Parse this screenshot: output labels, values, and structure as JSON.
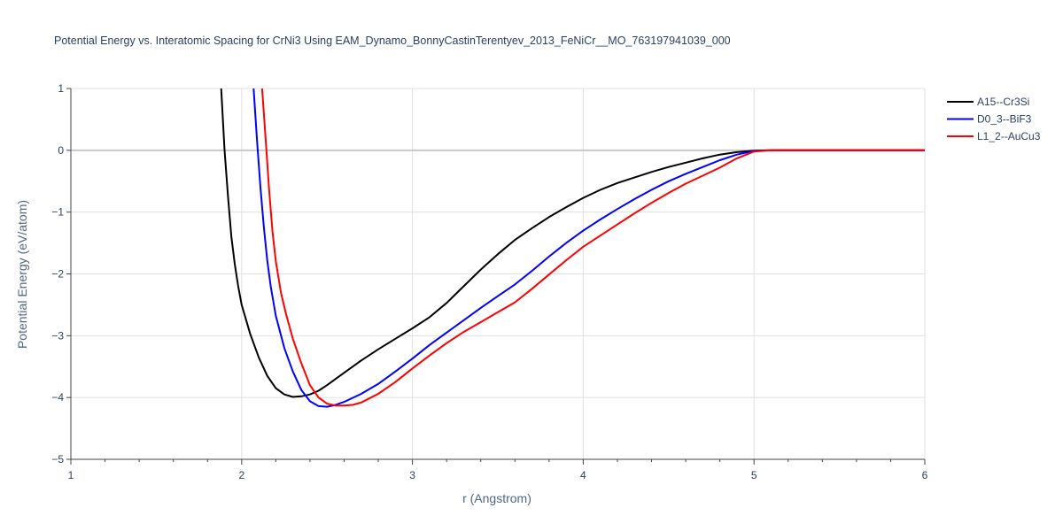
{
  "chart_data": {
    "type": "line",
    "title": "Potential Energy vs. Interatomic Spacing for CrNi3 Using EAM_Dynamo_BonnyCastinTerentyev_2013_FeNiCr__MO_763197941039_000",
    "xlabel": "r (Angstrom)",
    "ylabel": "Potential Energy (eV/atom)",
    "xlim": [
      1,
      6
    ],
    "ylim": [
      -5,
      1
    ],
    "xticks": [
      "1",
      "2",
      "3",
      "4",
      "5",
      "6"
    ],
    "yticks": [
      "1",
      "0",
      "−1",
      "−2",
      "−3",
      "−4",
      "−5"
    ],
    "grid": true,
    "legend_position": "top-right",
    "series": [
      {
        "name": "A15--Cr3Si",
        "color": "#000000",
        "x": [
          1.88,
          1.9,
          1.92,
          1.94,
          1.96,
          1.98,
          2.0,
          2.05,
          2.1,
          2.15,
          2.2,
          2.25,
          2.3,
          2.35,
          2.4,
          2.45,
          2.5,
          2.6,
          2.7,
          2.8,
          2.9,
          3.0,
          3.1,
          3.2,
          3.3,
          3.4,
          3.5,
          3.6,
          3.7,
          3.8,
          3.9,
          4.0,
          4.1,
          4.2,
          4.3,
          4.4,
          4.5,
          4.6,
          4.7,
          4.8,
          4.9,
          5.0,
          5.1,
          5.5,
          6.0
        ],
        "y": [
          1.0,
          0.0,
          -0.75,
          -1.4,
          -1.85,
          -2.2,
          -2.5,
          -2.97,
          -3.35,
          -3.65,
          -3.85,
          -3.95,
          -3.99,
          -3.98,
          -3.95,
          -3.89,
          -3.8,
          -3.6,
          -3.4,
          -3.22,
          -3.05,
          -2.88,
          -2.7,
          -2.47,
          -2.2,
          -1.93,
          -1.68,
          -1.45,
          -1.26,
          -1.08,
          -0.92,
          -0.77,
          -0.64,
          -0.53,
          -0.44,
          -0.35,
          -0.27,
          -0.2,
          -0.13,
          -0.07,
          -0.03,
          -0.005,
          0.0,
          0.0,
          0.0
        ]
      },
      {
        "name": "D0_3--BiF3",
        "color": "#0000ff",
        "x": [
          2.07,
          2.09,
          2.11,
          2.13,
          2.15,
          2.17,
          2.2,
          2.25,
          2.3,
          2.35,
          2.4,
          2.45,
          2.5,
          2.55,
          2.6,
          2.7,
          2.8,
          2.9,
          3.0,
          3.1,
          3.2,
          3.3,
          3.4,
          3.5,
          3.6,
          3.7,
          3.8,
          3.9,
          4.0,
          4.1,
          4.2,
          4.3,
          4.4,
          4.5,
          4.6,
          4.7,
          4.8,
          4.9,
          5.0,
          5.1,
          5.5,
          6.0
        ],
        "y": [
          1.0,
          0.15,
          -0.6,
          -1.25,
          -1.78,
          -2.2,
          -2.68,
          -3.2,
          -3.58,
          -3.88,
          -4.06,
          -4.14,
          -4.15,
          -4.12,
          -4.07,
          -3.94,
          -3.78,
          -3.58,
          -3.37,
          -3.15,
          -2.95,
          -2.75,
          -2.55,
          -2.36,
          -2.17,
          -1.95,
          -1.72,
          -1.5,
          -1.3,
          -1.12,
          -0.95,
          -0.79,
          -0.64,
          -0.5,
          -0.38,
          -0.27,
          -0.16,
          -0.07,
          -0.01,
          0.0,
          0.0,
          0.0
        ]
      },
      {
        "name": "L1_2--AuCu3",
        "color": "#ff0000",
        "x": [
          2.12,
          2.14,
          2.16,
          2.18,
          2.2,
          2.23,
          2.26,
          2.3,
          2.35,
          2.4,
          2.45,
          2.5,
          2.55,
          2.6,
          2.65,
          2.7,
          2.8,
          2.9,
          3.0,
          3.1,
          3.2,
          3.3,
          3.4,
          3.5,
          3.6,
          3.7,
          3.8,
          3.9,
          4.0,
          4.1,
          4.2,
          4.3,
          4.4,
          4.5,
          4.6,
          4.7,
          4.8,
          4.9,
          5.0,
          5.1,
          5.5,
          6.0
        ],
        "y": [
          1.0,
          0.2,
          -0.6,
          -1.3,
          -1.8,
          -2.3,
          -2.65,
          -3.05,
          -3.45,
          -3.8,
          -4.0,
          -4.1,
          -4.13,
          -4.13,
          -4.12,
          -4.08,
          -3.94,
          -3.75,
          -3.53,
          -3.32,
          -3.12,
          -2.94,
          -2.78,
          -2.62,
          -2.46,
          -2.24,
          -2.01,
          -1.78,
          -1.56,
          -1.38,
          -1.2,
          -1.02,
          -0.85,
          -0.69,
          -0.54,
          -0.41,
          -0.28,
          -0.13,
          -0.02,
          0.0,
          0.0,
          0.0
        ]
      }
    ]
  }
}
